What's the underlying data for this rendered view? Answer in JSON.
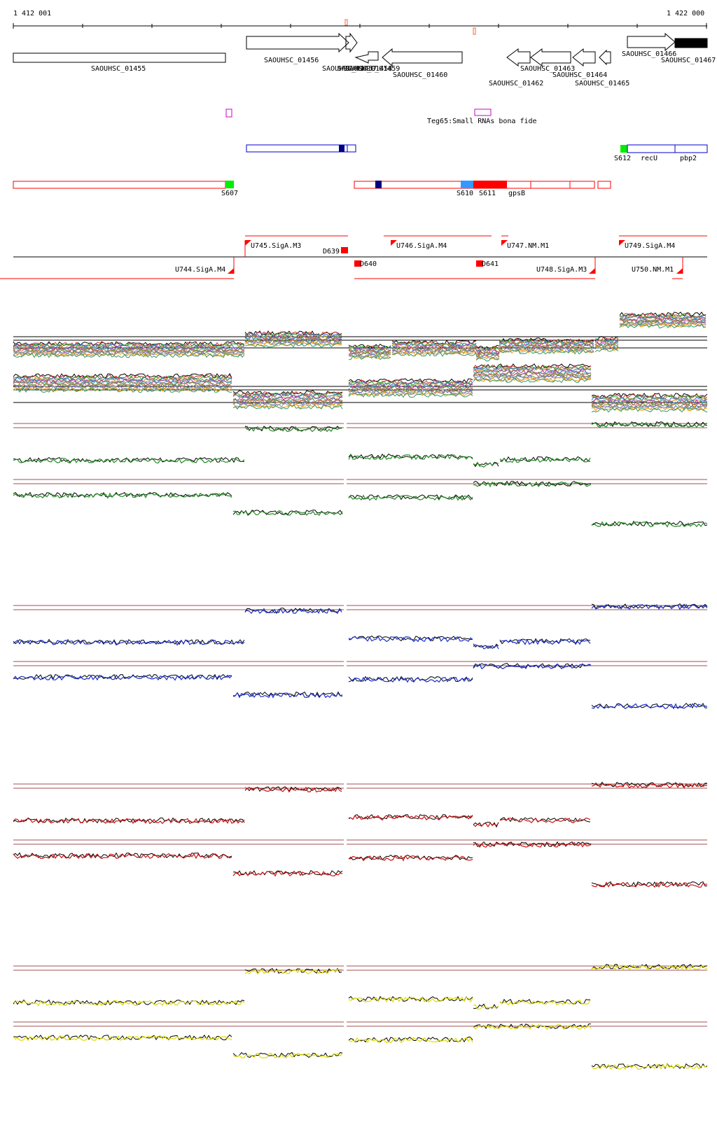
{
  "ruler": {
    "start_label": "1 412 001",
    "end_label": "1 422 000"
  },
  "genes": [
    {
      "label": "SAOUHSC_01455",
      "strand": "none"
    },
    {
      "label": "SAOUHSC_01456",
      "strand": "+"
    },
    {
      "label": "SAOUHSC_01457",
      "strand": "+"
    },
    {
      "label": "SAOUHSC_01458",
      "strand": "-"
    },
    {
      "label": "SAOUHSC_01459",
      "strand": "-"
    },
    {
      "label": "SAOUHSC_01460",
      "strand": "-"
    },
    {
      "label": "SAOUHSC_01462",
      "strand": "-"
    },
    {
      "label": "SAOUHSC_01463",
      "strand": "-"
    },
    {
      "label": "SAOUHSC_01464",
      "strand": "-"
    },
    {
      "label": "SAOUHSC_01465",
      "strand": "-"
    },
    {
      "label": "SAOUHSC_01466",
      "strand": "+"
    },
    {
      "label": "SAOUHSC_01467",
      "strand": "+"
    }
  ],
  "srna": {
    "label": "Teg65:Small RNAs bona fide"
  },
  "features": {
    "S607": "S607",
    "S610": "S610",
    "S611": "S611",
    "S612": "S612",
    "gpsB": "gpsB",
    "recU": "recU",
    "pbp2": "pbp2"
  },
  "upstream_segments": {
    "U744": "U744.SigA.M4",
    "U745": "U745.SigA.M3",
    "U746": "U746.SigA.M4",
    "U747": "U747.NM.M1",
    "U748": "U748.SigA.M3",
    "U749": "U749.SigA.M4",
    "U750": "U750.NM.M1"
  },
  "downstream_segments": {
    "D639": "D639",
    "D640": "D640",
    "D641": "D641"
  },
  "colors": {
    "gene_outline": "#000000",
    "plus_strand": "#0000cc",
    "minus_strand": "#ff0000",
    "srna": "#cc00cc",
    "ruler_mark": "#ff6633",
    "green_block": "#00ee00",
    "navy_block": "#000080",
    "cyan_block": "#3399ff",
    "red_block": "#ff0000",
    "track_green": "#228b22",
    "track_blue": "#1a2fcc",
    "track_red": "#cc1111",
    "track_yellow": "#dddd00",
    "threshold_line": "#a05050"
  }
}
